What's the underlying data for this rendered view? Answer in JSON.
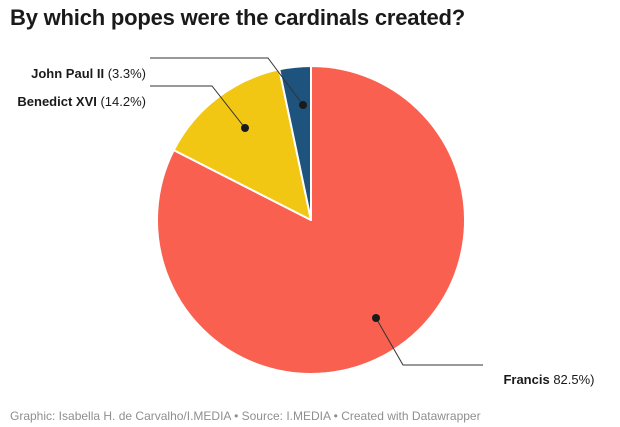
{
  "title": "By which popes were the cardinals created?",
  "footer": "Graphic: Isabella H. de Carvalho/I.MEDIA • Source: I.MEDIA • Created with Datawrapper",
  "colors": {
    "background": "#ffffff",
    "title_text": "#1a1a1a",
    "label_text": "#1a1a1a",
    "footer_text": "#8f8f8f",
    "leader_line": "#333333",
    "leader_dot": "#1a1a1a",
    "slice_gap": "#ffffff"
  },
  "chart_data": {
    "type": "pie",
    "title": "By which popes were the cardinals created?",
    "start_angle_deg": 0,
    "direction": "clockwise",
    "legend_position": "callout-labels",
    "slices": [
      {
        "name": "Francis",
        "value_pct": 82.5,
        "color": "#F9604F",
        "pct_label": " 82.5%)"
      },
      {
        "name": "Benedict XVI",
        "value_pct": 14.2,
        "color": "#F2C713",
        "pct_label": " (14.2%)"
      },
      {
        "name": "John Paul II",
        "value_pct": 3.3,
        "color": "#1E537E",
        "pct_label": " (3.3%)"
      }
    ]
  }
}
